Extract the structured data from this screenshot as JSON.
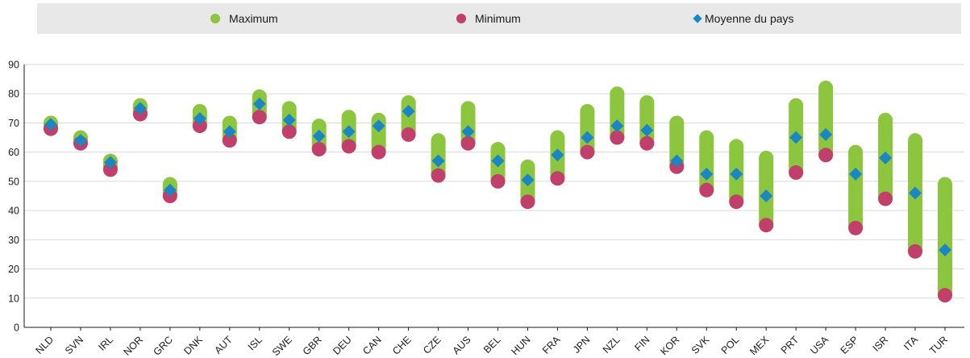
{
  "chart_data": {
    "type": "scatter",
    "categories": [
      "NLD",
      "SVN",
      "IRL",
      "NOR",
      "GRC",
      "DNK",
      "AUT",
      "ISL",
      "SWE",
      "GBR",
      "DEU",
      "CAN",
      "CHE",
      "CZE",
      "AUS",
      "BEL",
      "HUN",
      "FRA",
      "JPN",
      "NZL",
      "FIN",
      "KOR",
      "SVK",
      "POL",
      "MEX",
      "PRT",
      "USA",
      "ESP",
      "ISR",
      "ITA",
      "TUR"
    ],
    "series": [
      {
        "name": "Maximum",
        "color": "#8cc63f",
        "values": [
          70,
          65,
          57,
          76,
          49,
          74,
          70,
          79,
          75,
          69,
          72,
          71,
          77,
          64,
          75,
          61,
          55,
          65,
          74,
          80,
          77,
          70,
          65,
          62,
          58,
          76,
          82,
          60,
          71,
          64,
          49
        ]
      },
      {
        "name": "Minimum",
        "color": "#c03f6b",
        "values": [
          68,
          63,
          54,
          73,
          45,
          69,
          64,
          72,
          67,
          61,
          62,
          60,
          66,
          52,
          63,
          50,
          43,
          51,
          60,
          65,
          63,
          55,
          47,
          43,
          35,
          53,
          59,
          34,
          44,
          26,
          11
        ]
      },
      {
        "name": "Moyenne du pays",
        "color": "#1b86c4",
        "values": [
          69.5,
          64,
          56.5,
          75,
          47,
          71.5,
          67,
          76.5,
          71,
          65.5,
          67,
          69,
          74,
          57,
          67,
          57,
          50.5,
          59,
          65,
          69,
          67.5,
          57,
          52.5,
          52.5,
          45,
          65,
          66,
          52.5,
          58,
          46,
          26.5
        ]
      }
    ],
    "title": "",
    "xlabel": "",
    "ylabel": "",
    "ylim": [
      0,
      90
    ],
    "yticks": [
      0,
      10,
      20,
      30,
      40,
      50,
      60,
      70,
      80,
      90
    ],
    "grid": true,
    "legend_position": "top"
  },
  "legend": {
    "maximum": "Maximum",
    "minimum": "Minimum",
    "mean": "Moyenne du pays"
  },
  "colors": {
    "maximum": "#8cc63f",
    "minimum": "#c03f6b",
    "mean": "#1b86c4",
    "grid": "#d9d9d9",
    "axis": "#1a1a1a"
  }
}
